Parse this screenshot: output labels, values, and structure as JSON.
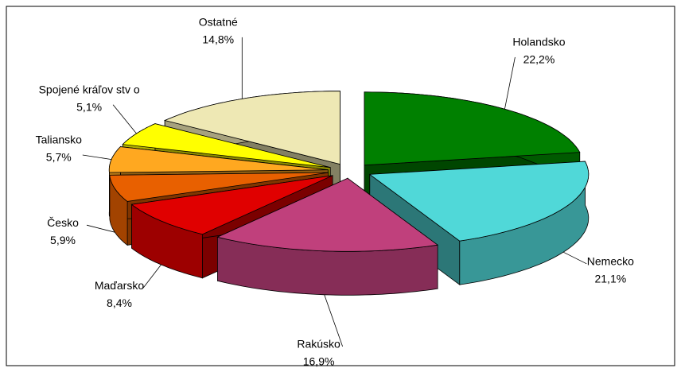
{
  "chart_data": {
    "type": "pie",
    "categories": [
      "Holandsko",
      "Nemecko",
      "Rakúsko",
      "Maďarsko",
      "Česko",
      "Taliansko",
      "Spojené kráľov stv o",
      "Ostatné"
    ],
    "values": [
      22.2,
      21.1,
      16.9,
      8.4,
      5.9,
      5.7,
      5.1,
      14.8
    ],
    "value_labels": [
      "22,2%",
      "21,1%",
      "16,9%",
      "8,4%",
      "5,9%",
      "5,7%",
      "5,1%",
      "14,8%"
    ],
    "colors": [
      "#008000",
      "#50d8d8",
      "#c0407c",
      "#e00000",
      "#e86000",
      "#ffa820",
      "#ffff00",
      "#eee8b4"
    ]
  }
}
